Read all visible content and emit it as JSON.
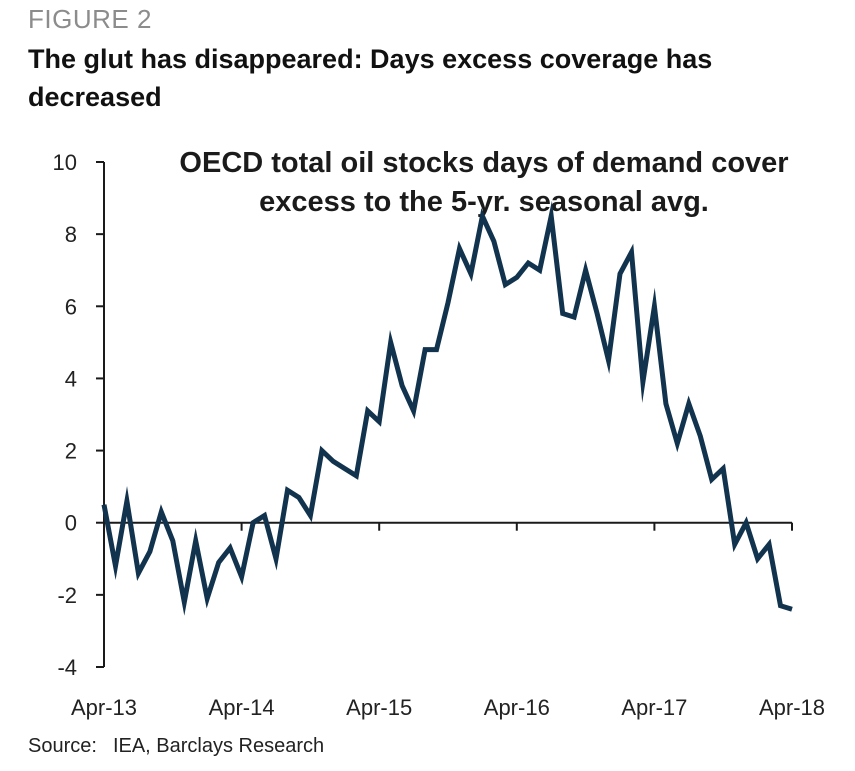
{
  "figure_label": "FIGURE 2",
  "title": "The glut has disappeared: Days excess coverage has decreased",
  "source": {
    "label": "Source:",
    "text": "IEA, Barclays Research"
  },
  "chart_data": {
    "type": "line",
    "annotation": [
      "OECD total oil stocks days of demand cover",
      "excess to the 5-yr. seasonal avg."
    ],
    "x_ticks": [
      "Apr-13",
      "Apr-14",
      "Apr-15",
      "Apr-16",
      "Apr-17",
      "Apr-18"
    ],
    "y_ticks": [
      "10",
      "8",
      "6",
      "4",
      "2",
      "0",
      "-2",
      "-4"
    ],
    "ylim": [
      -4,
      10
    ],
    "x_domain": [
      0,
      60
    ],
    "grid": false,
    "line_color": "#12334d",
    "series": [
      {
        "x": [
          0,
          1,
          2,
          3,
          4,
          5,
          6,
          7,
          8,
          9,
          10,
          11,
          12,
          13,
          14,
          15,
          16,
          17,
          18,
          19,
          20,
          21,
          22,
          23,
          24,
          25,
          26,
          27,
          28,
          29,
          30,
          31,
          32,
          33,
          34,
          35,
          36,
          37,
          38,
          39,
          40,
          41,
          42,
          43,
          44,
          45,
          46,
          47,
          48,
          49,
          50,
          51,
          52,
          53,
          54,
          55,
          56,
          57,
          58,
          59,
          60
        ],
        "values": [
          0.5,
          -1.2,
          0.6,
          -1.4,
          -0.8,
          0.3,
          -0.5,
          -2.2,
          -0.5,
          -2.1,
          -1.1,
          -0.7,
          -1.5,
          0.0,
          0.2,
          -1.0,
          0.9,
          0.7,
          0.2,
          2.0,
          1.7,
          1.5,
          1.3,
          3.1,
          2.8,
          5.0,
          3.8,
          3.1,
          4.8,
          4.8,
          6.1,
          7.6,
          6.9,
          8.5,
          7.8,
          6.6,
          6.8,
          7.2,
          7.0,
          8.5,
          5.8,
          5.7,
          7.0,
          5.8,
          4.5,
          6.9,
          7.5,
          3.9,
          6.0,
          3.3,
          2.2,
          3.3,
          2.4,
          1.2,
          1.5,
          -0.6,
          0.0,
          -1.0,
          -0.6,
          -2.3,
          -2.4
        ]
      }
    ]
  }
}
